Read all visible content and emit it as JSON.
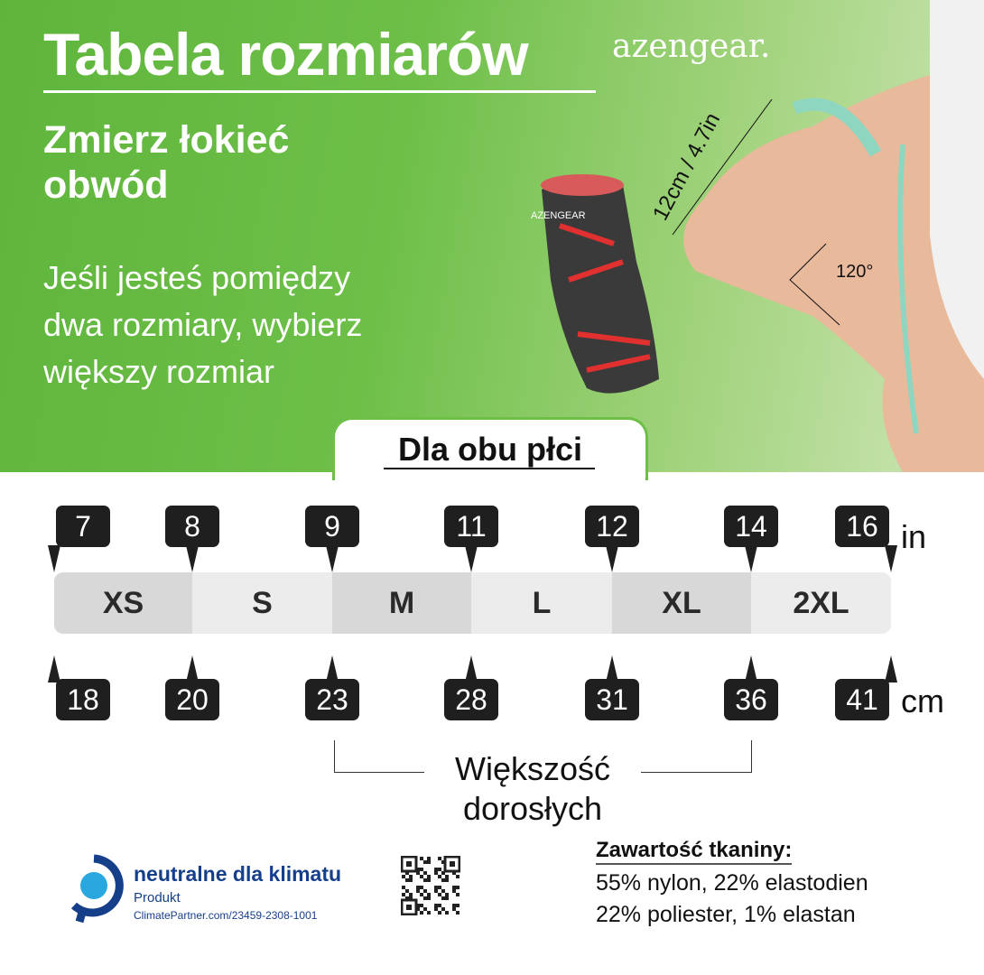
{
  "header": {
    "title": "Tabela rozmiarów",
    "brand": "azengear.",
    "subtitle_lines": [
      "Zmierz łokieć",
      "obwód"
    ],
    "note_lines": [
      "Jeśli jesteś pomiędzy",
      "dwa rozmiary, wybierz",
      "większy rozmiar"
    ],
    "measure_label": "12cm / 4.7in",
    "angle_label": "120°",
    "product_brand": "AZENGEAR",
    "badge": "Dla obu płci"
  },
  "sizes": [
    "XS",
    "S",
    "M",
    "L",
    "XL",
    "2XL"
  ],
  "inches": [
    "7",
    "8",
    "9",
    "11",
    "12",
    "14",
    "16"
  ],
  "cm": [
    "18",
    "20",
    "23",
    "28",
    "31",
    "36",
    "41"
  ],
  "units": {
    "in": "in",
    "cm": "cm"
  },
  "range_label_lines": [
    "Większość",
    "dorosłych"
  ],
  "climate": {
    "title": "neutralne dla klimatu",
    "product": "Produkt",
    "url": "ClimatePartner.com/23459-2308-1001"
  },
  "fabric": {
    "title": "Zawartość tkaniny:",
    "lines": [
      "55% nylon, 22% elastodien",
      "22% poliester, 1% elastan"
    ]
  },
  "colors": {
    "green": "#6dbf48",
    "tag": "#1f1f1f",
    "climate_blue": "#163f8a"
  }
}
